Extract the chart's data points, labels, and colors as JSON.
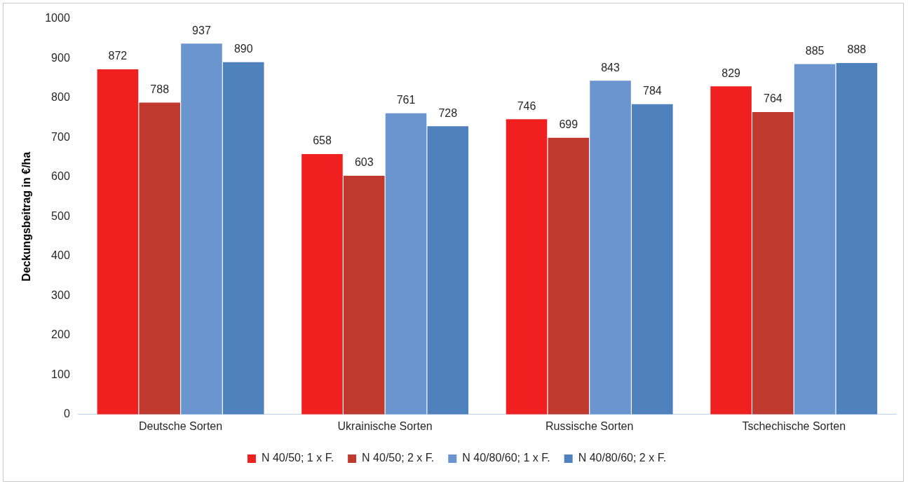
{
  "chart_data": {
    "type": "bar",
    "ylabel": "Deckungsbeitrag in €/ha",
    "categories": [
      "Deutsche Sorten",
      "Ukrainische Sorten",
      "Russische Sorten",
      "Tschechische Sorten"
    ],
    "series": [
      {
        "name": "N 40/50; 1 x F.",
        "color": "#f02020",
        "values": [
          872,
          658,
          746,
          829
        ]
      },
      {
        "name": "N 40/50; 2 x F.",
        "color": "#c0392f",
        "values": [
          788,
          603,
          699,
          764
        ]
      },
      {
        "name": "N 40/80/60; 1 x F.",
        "color": "#6a95cf",
        "values": [
          937,
          761,
          843,
          885
        ]
      },
      {
        "name": "N 40/80/60; 2 x F.",
        "color": "#4f81bd",
        "values": [
          890,
          728,
          784,
          888
        ]
      }
    ],
    "ylim": [
      0,
      1000
    ],
    "yticks": [
      0,
      100,
      200,
      300,
      400,
      500,
      600,
      700,
      800,
      900,
      1000
    ],
    "grid": false,
    "legend": "bottom",
    "data_labels": true
  }
}
